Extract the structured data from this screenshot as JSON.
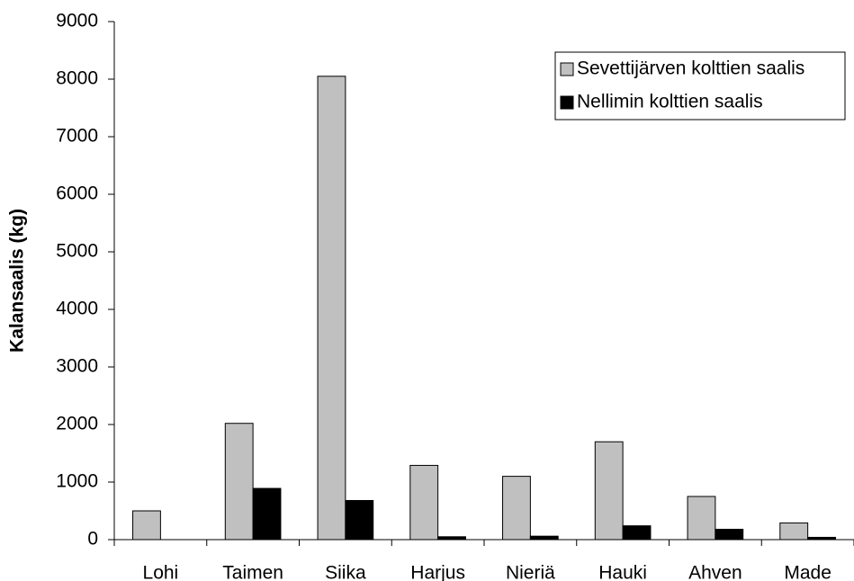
{
  "chart_data": {
    "type": "bar",
    "y_label": "Kalansaalis (kg)",
    "categories": [
      "Lohi",
      "Taimen",
      "Siika",
      "Harjus",
      "Nieriä",
      "Hauki",
      "Ahven",
      "Made"
    ],
    "series": [
      {
        "name": "Sevettijärven kolttien saalis",
        "color": "#c0c0c0",
        "values": [
          500,
          2020,
          8050,
          1290,
          1100,
          1700,
          750,
          290
        ]
      },
      {
        "name": "Nellimin kolttien saalis",
        "color": "#000000",
        "values": [
          0,
          890,
          680,
          50,
          60,
          240,
          180,
          40
        ]
      }
    ],
    "ylim": [
      0,
      9000
    ],
    "yticks": [
      0,
      1000,
      2000,
      3000,
      4000,
      5000,
      6000,
      7000,
      8000,
      9000
    ],
    "grid": false,
    "legend": "upper right"
  }
}
